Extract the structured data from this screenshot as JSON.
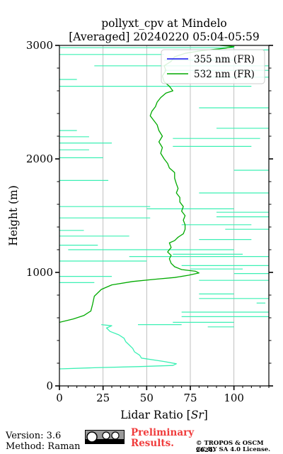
{
  "chart_data": {
    "type": "line",
    "title_line1": "pollyxt_cpv at Mindelo",
    "title_line2": "[Averaged] 20240220 05:04-05:59",
    "xlabel": "Lidar Ratio [",
    "xlabel_unit": "Sr",
    "xlabel_end": "]",
    "ylabel": "Height (m)",
    "xlim": [
      0,
      120
    ],
    "ylim": [
      0,
      3000
    ],
    "xticks": [
      0,
      25,
      50,
      75,
      100
    ],
    "xtick_labels": [
      "0",
      "25",
      "50",
      "75",
      "100"
    ],
    "yticks": [
      0,
      1000,
      2000,
      3000
    ],
    "ytick_labels": [
      "0",
      "1000",
      "2000",
      "3000"
    ],
    "grid": "x-only",
    "legend_placement": "top-right",
    "colors": {
      "s355": "#1010ee",
      "s532": "#00aa00",
      "raw532": "#3cf0b4"
    },
    "series": [
      {
        "name": "355 nm (FR)",
        "color": "#1010ee",
        "points": []
      },
      {
        "name": "532 nm (FR)",
        "color": "#00aa00",
        "points": [
          [
            0,
            560
          ],
          [
            8,
            590
          ],
          [
            14,
            620
          ],
          [
            18,
            660
          ],
          [
            19,
            720
          ],
          [
            20,
            790
          ],
          [
            24,
            850
          ],
          [
            30,
            890
          ],
          [
            42,
            920
          ],
          [
            55,
            940
          ],
          [
            66,
            955
          ],
          [
            74,
            975
          ],
          [
            80,
            995
          ],
          [
            78,
            1010
          ],
          [
            70,
            1025
          ],
          [
            66,
            1050
          ],
          [
            64,
            1080
          ],
          [
            63,
            1120
          ],
          [
            64,
            1150
          ],
          [
            62,
            1180
          ],
          [
            64,
            1220
          ],
          [
            63,
            1260
          ],
          [
            66,
            1280
          ],
          [
            68,
            1310
          ],
          [
            71,
            1340
          ],
          [
            72,
            1380
          ],
          [
            72,
            1420
          ],
          [
            71,
            1460
          ],
          [
            72,
            1500
          ],
          [
            70,
            1540
          ],
          [
            71,
            1580
          ],
          [
            69,
            1620
          ],
          [
            69,
            1660
          ],
          [
            67,
            1700
          ],
          [
            68,
            1740
          ],
          [
            67,
            1780
          ],
          [
            66,
            1830
          ],
          [
            66,
            1880
          ],
          [
            63,
            1920
          ],
          [
            62,
            1960
          ],
          [
            60,
            2000
          ],
          [
            58,
            2050
          ],
          [
            59,
            2100
          ],
          [
            57,
            2150
          ],
          [
            59,
            2200
          ],
          [
            57,
            2250
          ],
          [
            56,
            2300
          ],
          [
            54,
            2340
          ],
          [
            52,
            2380
          ],
          [
            53,
            2420
          ],
          [
            55,
            2460
          ],
          [
            56,
            2500
          ],
          [
            58,
            2540
          ],
          [
            61,
            2580
          ],
          [
            65,
            2600
          ],
          [
            63,
            2640
          ],
          [
            60,
            2680
          ],
          [
            59,
            2730
          ],
          [
            61,
            2780
          ],
          [
            60,
            2820
          ],
          [
            64,
            2860
          ],
          [
            66,
            2900
          ],
          [
            72,
            2930
          ],
          [
            82,
            2955
          ],
          [
            95,
            2975
          ],
          [
            100,
            2990
          ],
          [
            92,
            3000
          ]
        ]
      },
      {
        "name": "",
        "color": "#3cf0b4",
        "points": [
          [
            0,
            150
          ],
          [
            20,
            160
          ],
          [
            45,
            170
          ],
          [
            65,
            180
          ],
          [
            67,
            195
          ],
          [
            60,
            215
          ],
          [
            47,
            245
          ],
          [
            46,
            270
          ],
          [
            43,
            300
          ],
          [
            42,
            330
          ],
          [
            40,
            360
          ],
          [
            38,
            390
          ],
          [
            37,
            420
          ],
          [
            34,
            450
          ],
          [
            29,
            480
          ],
          [
            27,
            510
          ],
          [
            30,
            530
          ],
          [
            24,
            540
          ]
        ]
      }
    ],
    "spikes_532": [
      [
        0,
        2080,
        17
      ],
      [
        0,
        2140,
        30
      ],
      [
        0,
        2195,
        17
      ],
      [
        0,
        2010,
        25
      ],
      [
        0,
        1810,
        28
      ],
      [
        0,
        1580,
        52
      ],
      [
        0,
        1480,
        52
      ],
      [
        0,
        1370,
        14
      ],
      [
        0,
        1240,
        22
      ],
      [
        0,
        1100,
        50
      ],
      [
        0,
        965,
        30
      ],
      [
        0,
        910,
        20
      ],
      [
        0,
        1320,
        40
      ],
      [
        0,
        2250,
        10
      ],
      [
        0,
        2700,
        10
      ]
    ],
    "spikes_right": [
      [
        100,
        2980,
        100
      ],
      [
        120,
        2960,
        55
      ],
      [
        60,
        2920,
        75
      ],
      [
        100,
        2870,
        40
      ],
      [
        130,
        2820,
        110
      ],
      [
        120,
        2780,
        60
      ],
      [
        125,
        2720,
        40
      ],
      [
        110,
        2640,
        115
      ],
      [
        120,
        2450,
        40
      ],
      [
        120,
        2270,
        30
      ],
      [
        115,
        2180,
        50
      ],
      [
        110,
        2110,
        45
      ],
      [
        120,
        1900,
        20
      ],
      [
        120,
        1700,
        40
      ],
      [
        100,
        1560,
        50
      ],
      [
        130,
        1530,
        40
      ],
      [
        125,
        1490,
        35
      ],
      [
        110,
        1420,
        40
      ],
      [
        120,
        1380,
        25
      ],
      [
        110,
        1290,
        30
      ],
      [
        100,
        1200,
        95
      ],
      [
        105,
        1160,
        40
      ],
      [
        120,
        1140,
        80
      ],
      [
        130,
        1060,
        60
      ],
      [
        105,
        1030,
        30
      ],
      [
        120,
        990,
        20
      ],
      [
        120,
        930,
        40
      ],
      [
        100,
        810,
        20
      ],
      [
        120,
        770,
        40
      ],
      [
        118,
        730,
        5
      ],
      [
        125,
        650,
        55
      ],
      [
        130,
        610,
        60
      ],
      [
        100,
        560,
        35
      ],
      [
        70,
        540,
        25
      ],
      [
        100,
        520,
        15
      ]
    ]
  },
  "footer": {
    "version": "Version: 3.6",
    "method": "Method: Raman",
    "prelim1": "Preliminary",
    "prelim2": "Results.",
    "copy1": "© TROPOS & OSCM 2024.",
    "copy2": "CC BY SA 4.0 License."
  }
}
